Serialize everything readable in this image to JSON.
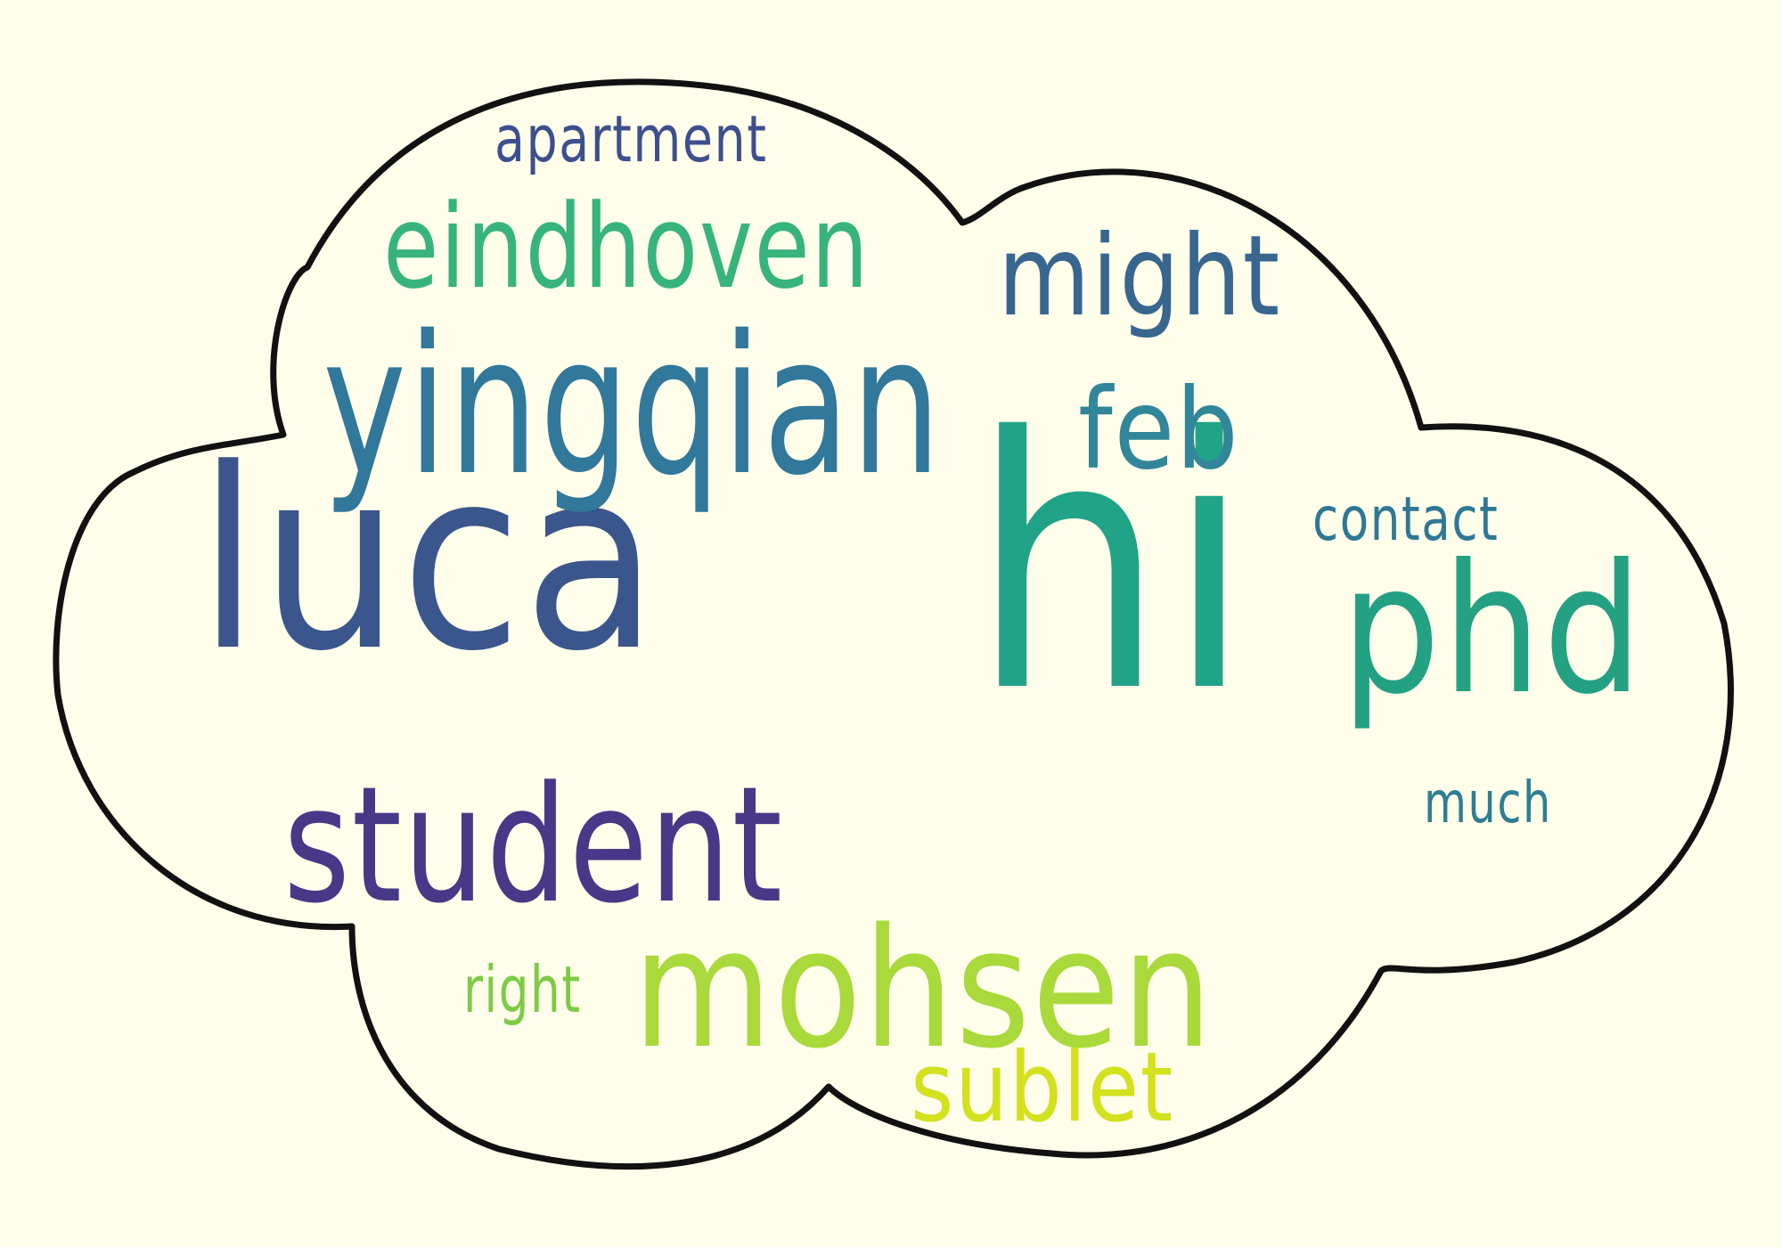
{
  "words": [
    {
      "id": "luca",
      "text": "luca",
      "color": "#3b568d"
    },
    {
      "id": "hi",
      "text": "hi",
      "color": "#21a388"
    },
    {
      "id": "phd",
      "text": "phd",
      "color": "#24a083"
    },
    {
      "id": "yingqian",
      "text": "yingqian",
      "color": "#31789a"
    },
    {
      "id": "student",
      "text": "student",
      "color": "#473987"
    },
    {
      "id": "mohsen",
      "text": "mohsen",
      "color": "#a9d93a"
    },
    {
      "id": "eindhoven",
      "text": "eindhoven",
      "color": "#37b47c"
    },
    {
      "id": "might",
      "text": "might",
      "color": "#38668f"
    },
    {
      "id": "feb",
      "text": "feb",
      "color": "#32869a"
    },
    {
      "id": "sublet",
      "text": "sublet",
      "color": "#d3e11f"
    },
    {
      "id": "apartment",
      "text": "apartment",
      "color": "#3e4f8e"
    },
    {
      "id": "contact",
      "text": "contact",
      "color": "#2f7895"
    },
    {
      "id": "much",
      "text": "much",
      "color": "#2f7e93"
    },
    {
      "id": "right",
      "text": "right",
      "color": "#7dcb45"
    }
  ],
  "cloud": {
    "outline_color": "#111111",
    "fill_color": "#fefeea"
  }
}
